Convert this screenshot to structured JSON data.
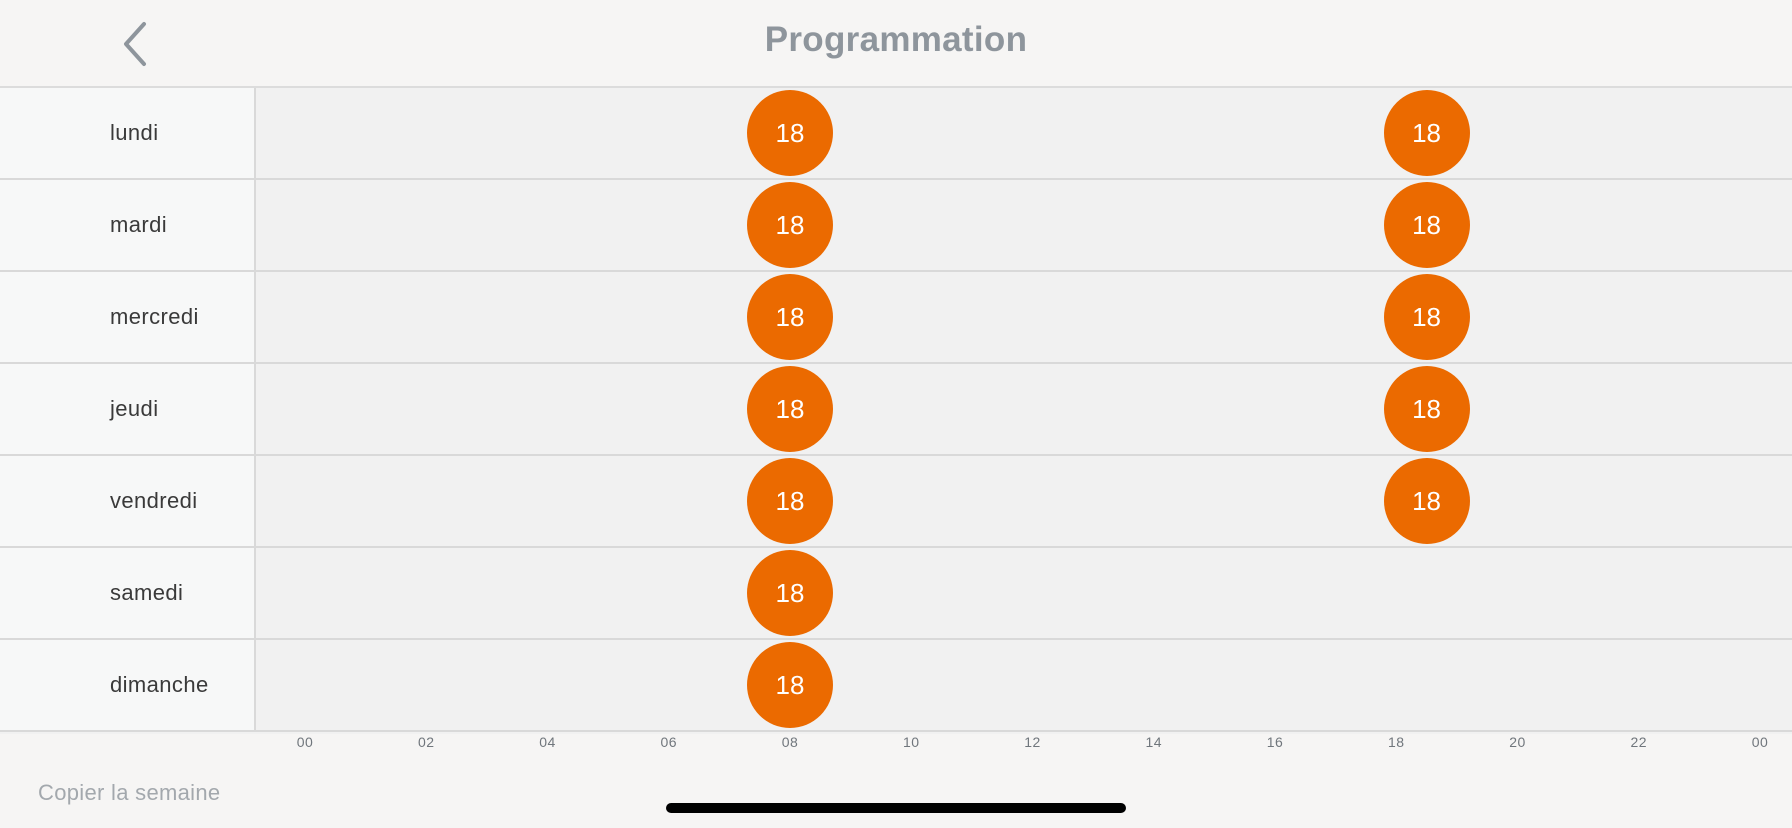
{
  "header": {
    "title": "Programmation",
    "back_icon": "chevron-left-icon"
  },
  "schedule": {
    "accent_color": "#eb6a00",
    "days": [
      {
        "label": "lundi",
        "setpoints": [
          {
            "hour": 8,
            "value": "18"
          },
          {
            "hour": 18.5,
            "value": "18"
          }
        ]
      },
      {
        "label": "mardi",
        "setpoints": [
          {
            "hour": 8,
            "value": "18"
          },
          {
            "hour": 18.5,
            "value": "18"
          }
        ]
      },
      {
        "label": "mercredi",
        "setpoints": [
          {
            "hour": 8,
            "value": "18"
          },
          {
            "hour": 18.5,
            "value": "18"
          }
        ]
      },
      {
        "label": "jeudi",
        "setpoints": [
          {
            "hour": 8,
            "value": "18"
          },
          {
            "hour": 18.5,
            "value": "18"
          }
        ]
      },
      {
        "label": "vendredi",
        "setpoints": [
          {
            "hour": 8,
            "value": "18"
          },
          {
            "hour": 18.5,
            "value": "18"
          }
        ]
      },
      {
        "label": "samedi",
        "setpoints": [
          {
            "hour": 8,
            "value": "18"
          }
        ]
      },
      {
        "label": "dimanche",
        "setpoints": [
          {
            "hour": 8,
            "value": "18"
          }
        ]
      }
    ],
    "axis_ticks": [
      "00",
      "02",
      "04",
      "06",
      "08",
      "10",
      "12",
      "14",
      "16",
      "18",
      "20",
      "22",
      "00"
    ]
  },
  "footer": {
    "copy_week_label": "Copier la semaine"
  }
}
